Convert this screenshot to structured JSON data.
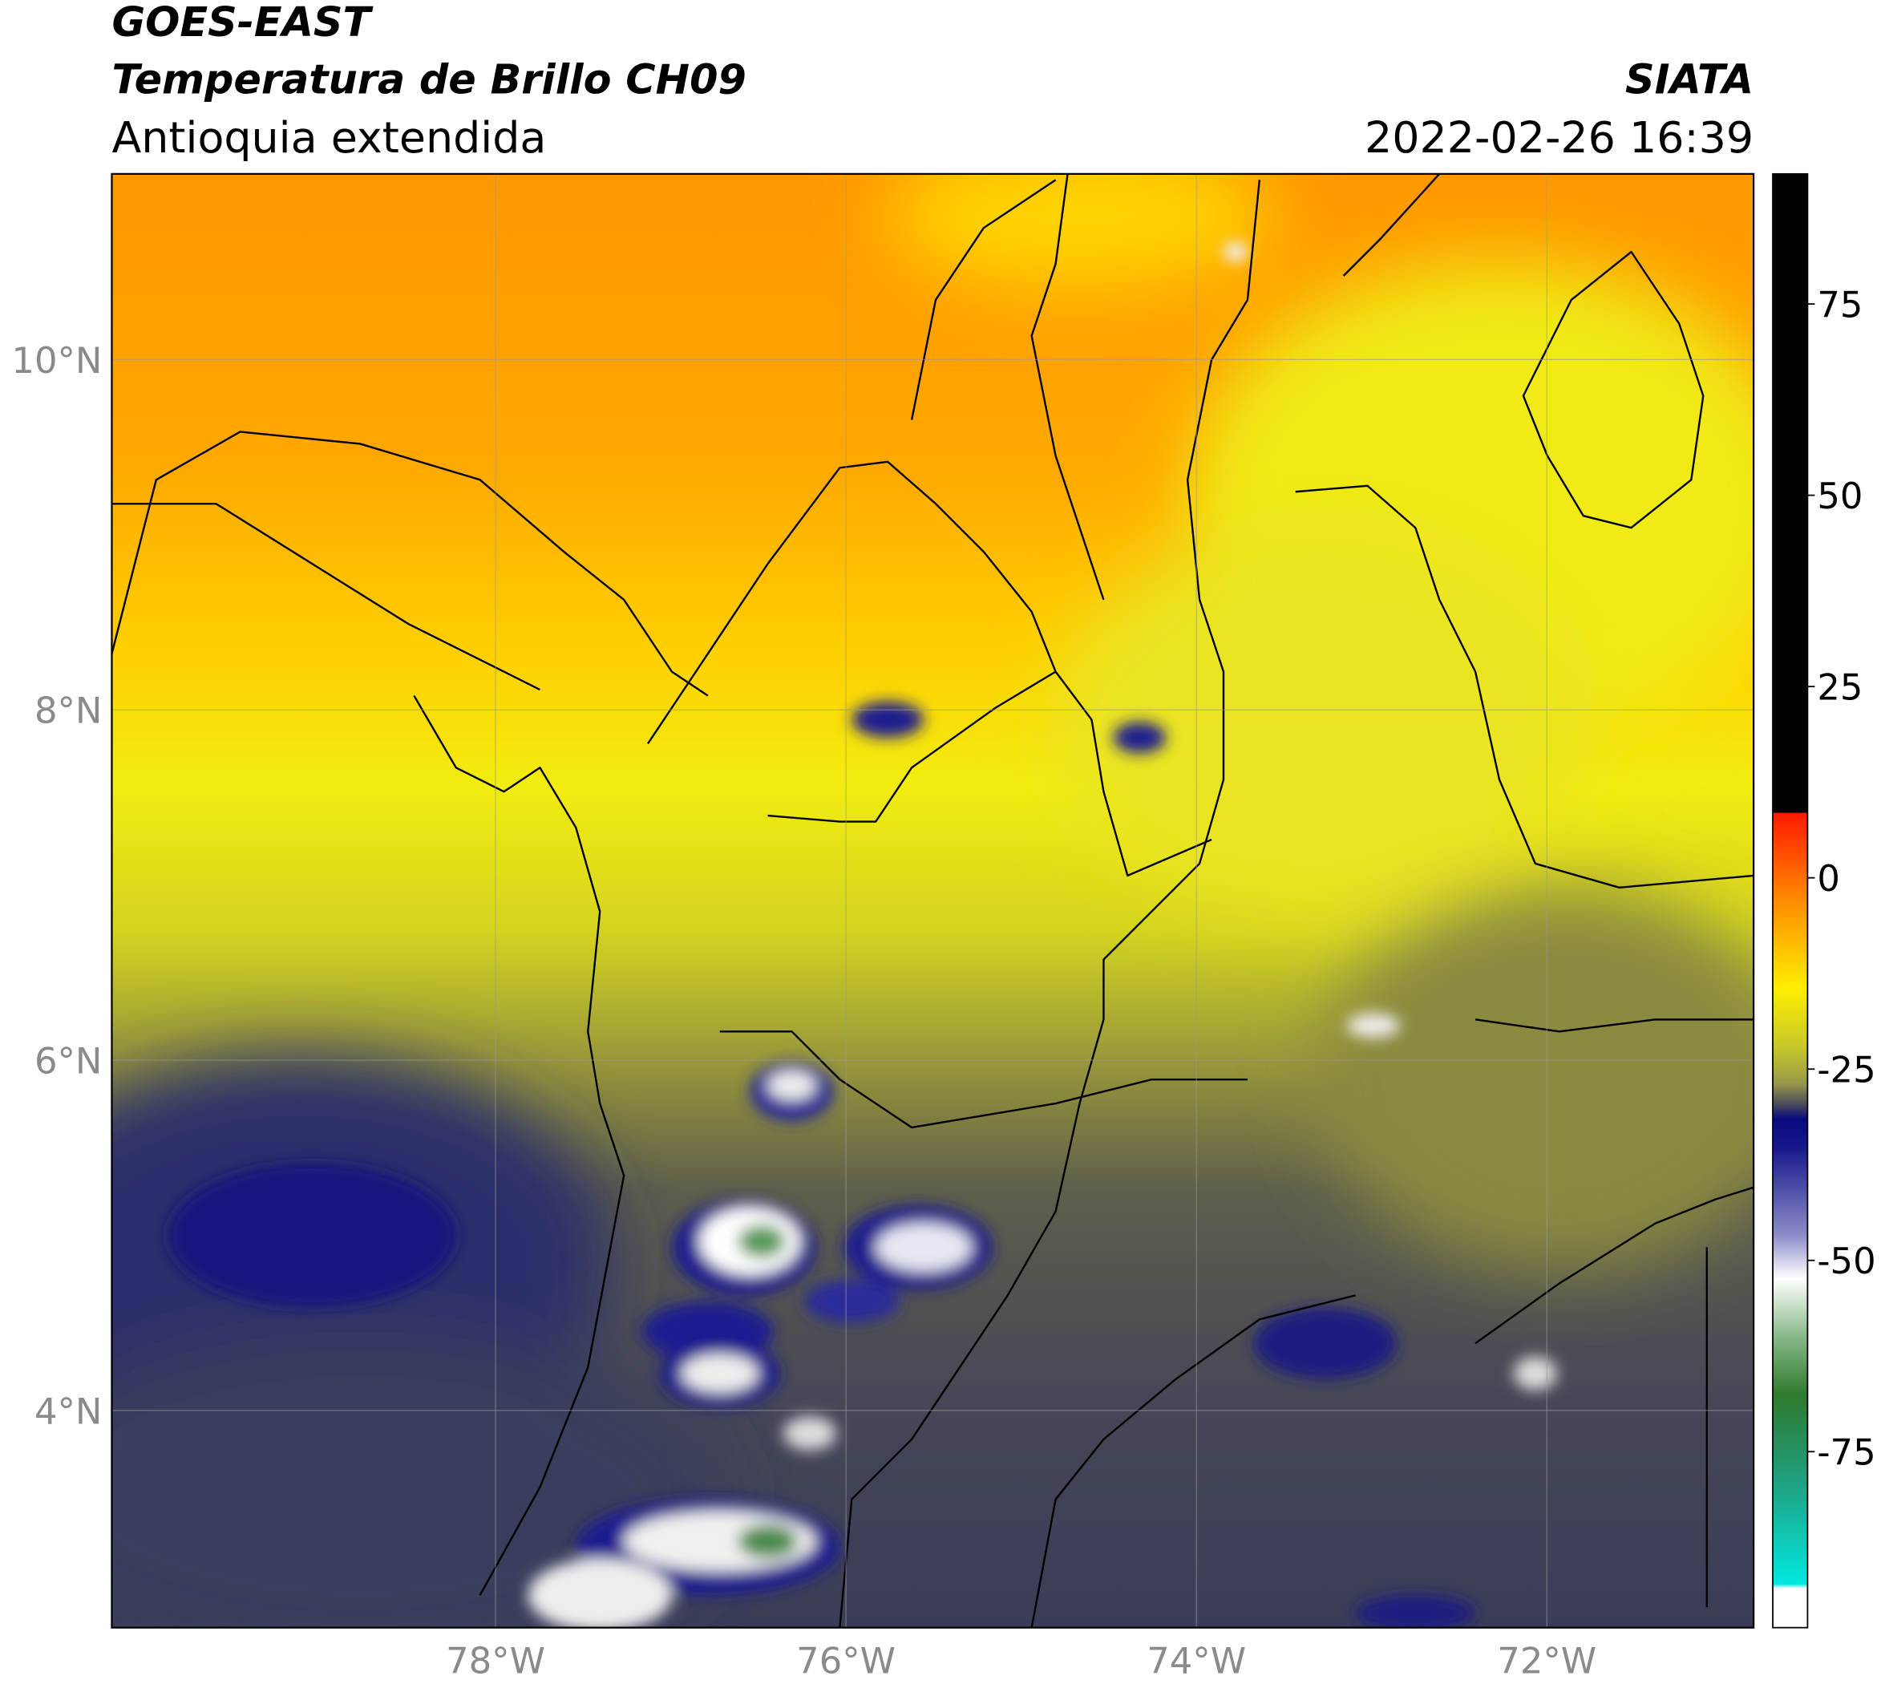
{
  "header": {
    "source": "GOES-EAST",
    "product": "Temperatura de Brillo CH09",
    "region": "Antioquia extendida",
    "agency": "SIATA",
    "datetime": "2022-02-26 16:39"
  },
  "map": {
    "lat_lim": [
      2.76,
      11.06
    ],
    "lon_lim": [
      -80.19,
      -70.82
    ],
    "lat_ticks": [
      {
        "value": 10,
        "label": "10°N"
      },
      {
        "value": 8,
        "label": "8°N"
      },
      {
        "value": 6,
        "label": "6°N"
      },
      {
        "value": 4,
        "label": "4°N"
      }
    ],
    "lon_ticks": [
      {
        "value": -78,
        "label": "78°W"
      },
      {
        "value": -76,
        "label": "76°W"
      },
      {
        "value": -74,
        "label": "74°W"
      },
      {
        "value": -72,
        "label": "72°W"
      }
    ],
    "grid": true,
    "colorbar": {
      "lim": [
        -98,
        92
      ],
      "ticks": [
        75,
        50,
        25,
        0,
        -25,
        -50,
        -75
      ]
    }
  }
}
